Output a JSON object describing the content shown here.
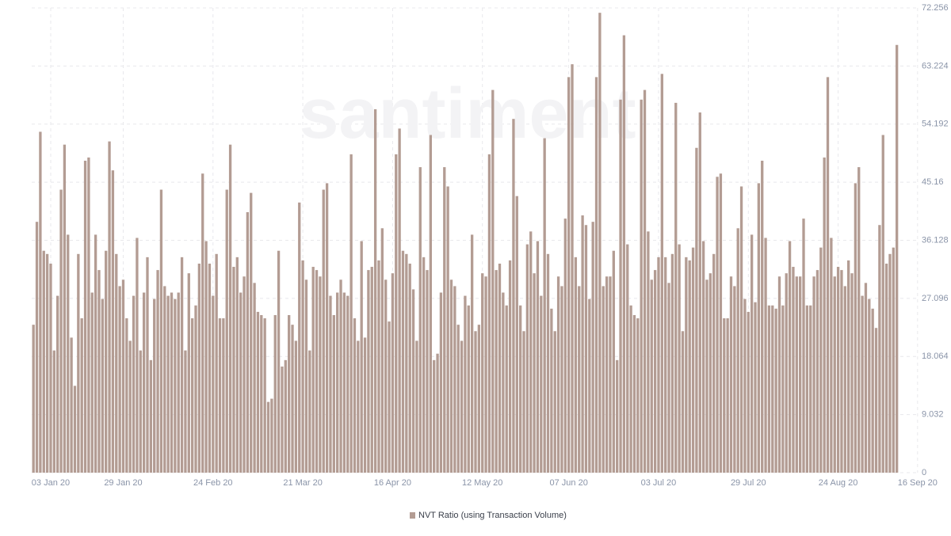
{
  "chart_data": {
    "type": "bar",
    "watermark": "santiment",
    "color": "#b39c93",
    "grid": true,
    "ylim": [
      0,
      72.256
    ],
    "yticks": [
      0,
      9.032,
      18.064,
      27.096,
      36.128,
      45.16,
      54.192,
      63.224,
      72.256
    ],
    "categories": [
      null,
      null,
      null,
      null,
      null,
      "03 Jan 20",
      null,
      null,
      null,
      null,
      null,
      null,
      null,
      null,
      null,
      null,
      null,
      null,
      null,
      null,
      null,
      null,
      null,
      null,
      null,
      null,
      "29 Jan 20",
      null,
      null,
      null,
      null,
      null,
      null,
      null,
      null,
      null,
      null,
      null,
      null,
      null,
      null,
      null,
      null,
      null,
      null,
      null,
      null,
      null,
      null,
      null,
      null,
      null,
      "24 Feb 20",
      null,
      null,
      null,
      null,
      null,
      null,
      null,
      null,
      null,
      null,
      null,
      null,
      null,
      null,
      null,
      null,
      null,
      null,
      null,
      null,
      null,
      null,
      null,
      null,
      null,
      "21 Mar 20",
      null,
      null,
      null,
      null,
      null,
      null,
      null,
      null,
      null,
      null,
      null,
      null,
      null,
      null,
      null,
      null,
      null,
      null,
      null,
      null,
      null,
      null,
      null,
      null,
      null,
      "16 Apr 20",
      null,
      null,
      null,
      null,
      null,
      null,
      null,
      null,
      null,
      null,
      null,
      null,
      null,
      null,
      null,
      null,
      null,
      null,
      null,
      null,
      null,
      null,
      null,
      null,
      null,
      "12 May 20",
      null,
      null,
      null,
      null,
      null,
      null,
      null,
      null,
      null,
      null,
      null,
      null,
      null,
      null,
      null,
      null,
      null,
      null,
      null,
      null,
      null,
      null,
      null,
      null,
      "07 Jun 20",
      null,
      null,
      null,
      null,
      null,
      null,
      null,
      null,
      null,
      null,
      null,
      null,
      null,
      null,
      null,
      null,
      null,
      null,
      null,
      null,
      null,
      null,
      null,
      null,
      null,
      "03 Jul 20",
      null,
      null,
      null,
      null,
      null,
      null,
      null,
      null,
      null,
      null,
      null,
      null,
      null,
      null,
      null,
      null,
      null,
      null,
      null,
      null,
      null,
      null,
      null,
      null,
      null,
      "29 Jul 20",
      null,
      null,
      null,
      null,
      null,
      null,
      null,
      null,
      null,
      null,
      null,
      null,
      null,
      null,
      null,
      null,
      null,
      null,
      null,
      null,
      null,
      null,
      null,
      null,
      null,
      "24 Aug 20",
      null,
      null,
      null,
      null,
      null,
      null,
      null,
      null,
      null,
      null,
      null,
      null,
      null,
      null,
      null,
      null,
      null,
      null,
      null,
      null,
      null,
      null,
      "16 Sep 20"
    ],
    "series": [
      {
        "name": "NVT Ratio (using Transaction Volume)",
        "color": "#b39c93",
        "values": [
          23,
          39,
          53,
          34.5,
          34,
          32.5,
          19,
          27.5,
          44,
          51,
          37,
          21,
          13.5,
          34,
          24,
          48.5,
          49,
          28,
          37,
          31.5,
          27,
          34.5,
          51.5,
          47,
          34,
          29,
          30,
          24,
          20.5,
          27.5,
          36.5,
          19,
          28,
          33.5,
          17.5,
          27,
          31.5,
          44,
          29,
          27.5,
          28,
          27,
          28,
          33.5,
          19,
          31,
          24,
          26,
          32.5,
          46.5,
          36,
          32.5,
          27.5,
          34,
          24,
          24,
          44,
          51,
          32,
          33.5,
          28,
          30.5,
          40.5,
          43.5,
          29.5,
          25,
          24.5,
          24,
          11,
          11.5,
          24.5,
          34.5,
          16.5,
          17.5,
          24.5,
          23,
          20.5,
          42,
          33,
          30,
          19,
          32,
          31.5,
          30.5,
          44,
          45,
          27.5,
          24.5,
          28,
          30,
          28,
          27.5,
          49.5,
          24,
          20.5,
          36,
          21,
          31.5,
          32,
          56.5,
          33,
          38,
          30,
          23.5,
          31,
          49.5,
          53.5,
          34.5,
          34,
          32.5,
          28.5,
          20.5,
          47.5,
          33.5,
          31.5,
          52.5,
          17.5,
          18.5,
          28,
          47.5,
          44.5,
          30,
          29,
          23,
          20.5,
          27.5,
          26,
          37,
          22,
          23,
          31,
          30.5,
          49.5,
          59.5,
          31.5,
          32.5,
          28,
          26,
          33,
          55,
          43,
          26,
          22,
          35.5,
          37.5,
          31,
          36,
          27.5,
          52,
          34,
          25.5,
          22,
          30.5,
          29,
          39.5,
          61.5,
          63.5,
          33.5,
          29,
          40,
          38.5,
          27,
          39,
          61.5,
          71.5,
          29,
          30.5,
          30.5,
          34.5,
          17.5,
          58,
          68,
          35.5,
          26,
          24.5,
          24,
          58,
          59.5,
          37.5,
          30,
          31.5,
          33.5,
          62,
          33.5,
          29.5,
          34,
          57.5,
          35.5,
          22,
          33.5,
          33,
          35,
          50.5,
          56,
          36,
          30,
          31,
          34,
          46,
          46.5,
          24,
          24,
          30.5,
          29,
          38,
          44.5,
          27,
          25,
          37,
          26.5,
          45,
          48.5,
          36.5,
          26,
          26,
          25.5,
          30.5,
          26,
          31,
          36,
          32,
          30.5,
          30.5,
          39.5,
          26,
          26,
          30.5,
          31.5,
          35,
          49,
          61.5,
          36.5,
          30.5,
          32,
          31.5,
          29,
          33,
          31,
          45,
          47.5,
          27.5,
          29.5,
          27,
          25.5,
          22.5,
          38.5,
          52.5,
          32.5,
          34,
          35,
          66.5,
          null,
          null,
          null,
          null,
          null,
          null
        ]
      }
    ]
  }
}
